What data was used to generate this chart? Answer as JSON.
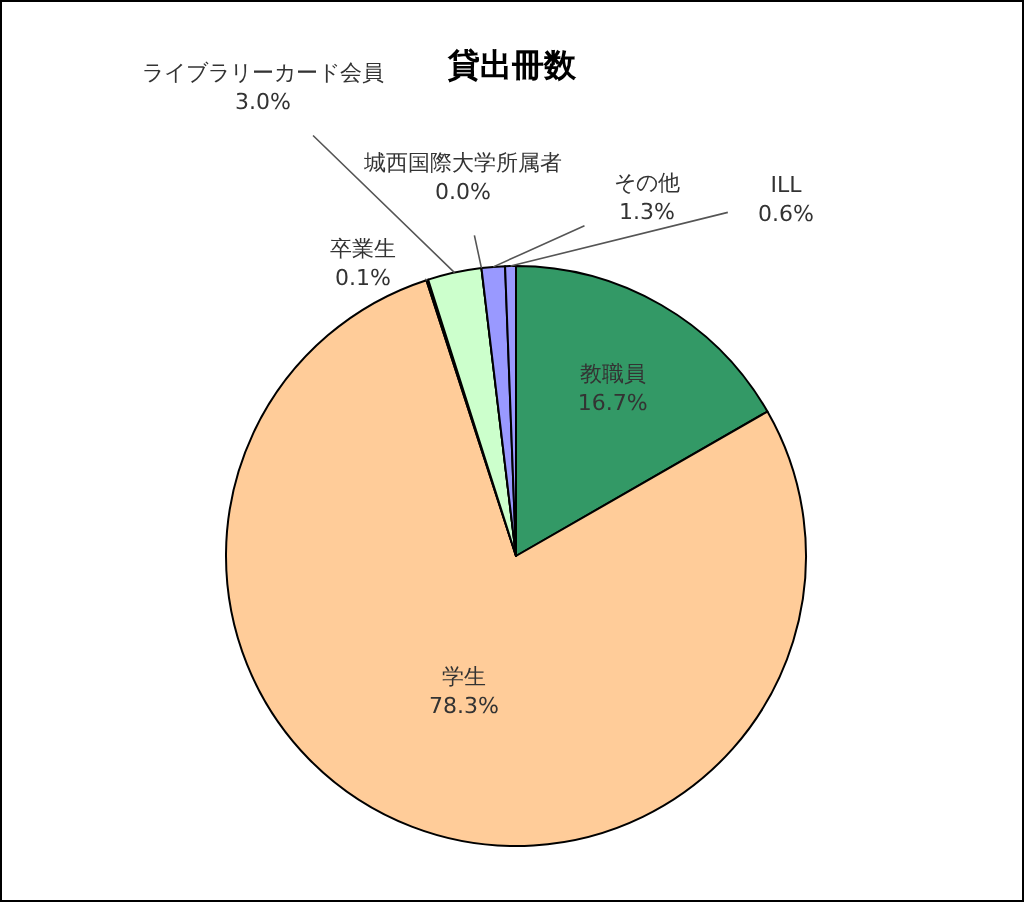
{
  "chart_data": {
    "type": "pie",
    "title": "貸出冊数",
    "categories": [
      "教職員",
      "学生",
      "卒業生",
      "ライブラリーカード会員",
      "城西国際大学所属者",
      "その他",
      "ILL"
    ],
    "values": [
      16.7,
      78.3,
      0.1,
      3.0,
      0.0,
      1.3,
      0.6
    ],
    "value_labels": [
      "16.7%",
      "78.3%",
      "0.1%",
      "3.0%",
      "0.0%",
      "1.3%",
      "0.6%"
    ],
    "colors": [
      "#339966",
      "#ffcc99",
      "#ccffff",
      "#ccffcc",
      "#ffffff",
      "#9999ff",
      "#9999ff"
    ],
    "legend": false
  }
}
